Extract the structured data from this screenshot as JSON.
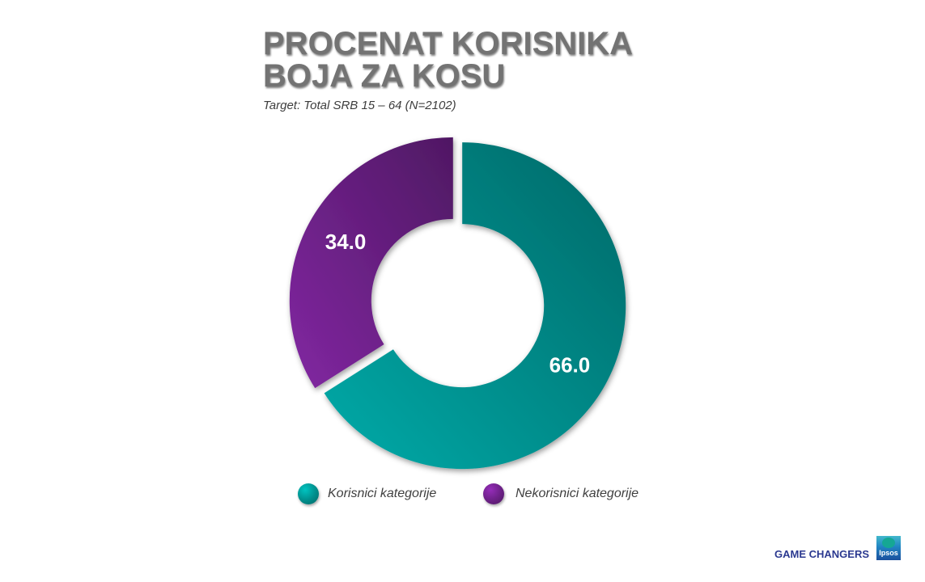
{
  "chart_data": {
    "type": "pie",
    "donut": true,
    "exploded": true,
    "title": "PROCENAT KORISNIKA BOJA ZA KOSU",
    "subtitle": "Target: Total SRB 15 – 64 (N=2102)",
    "categories": [
      "Korisnici kategorije",
      "Nekorisnici kategorije"
    ],
    "values": [
      66.0,
      34.0
    ],
    "colors": [
      "#00918f",
      "#6e2189"
    ],
    "legend": "bottom"
  },
  "branding": {
    "tagline": "GAME CHANGERS",
    "logo_text": "Ipsos",
    "color": "#2b3990"
  }
}
